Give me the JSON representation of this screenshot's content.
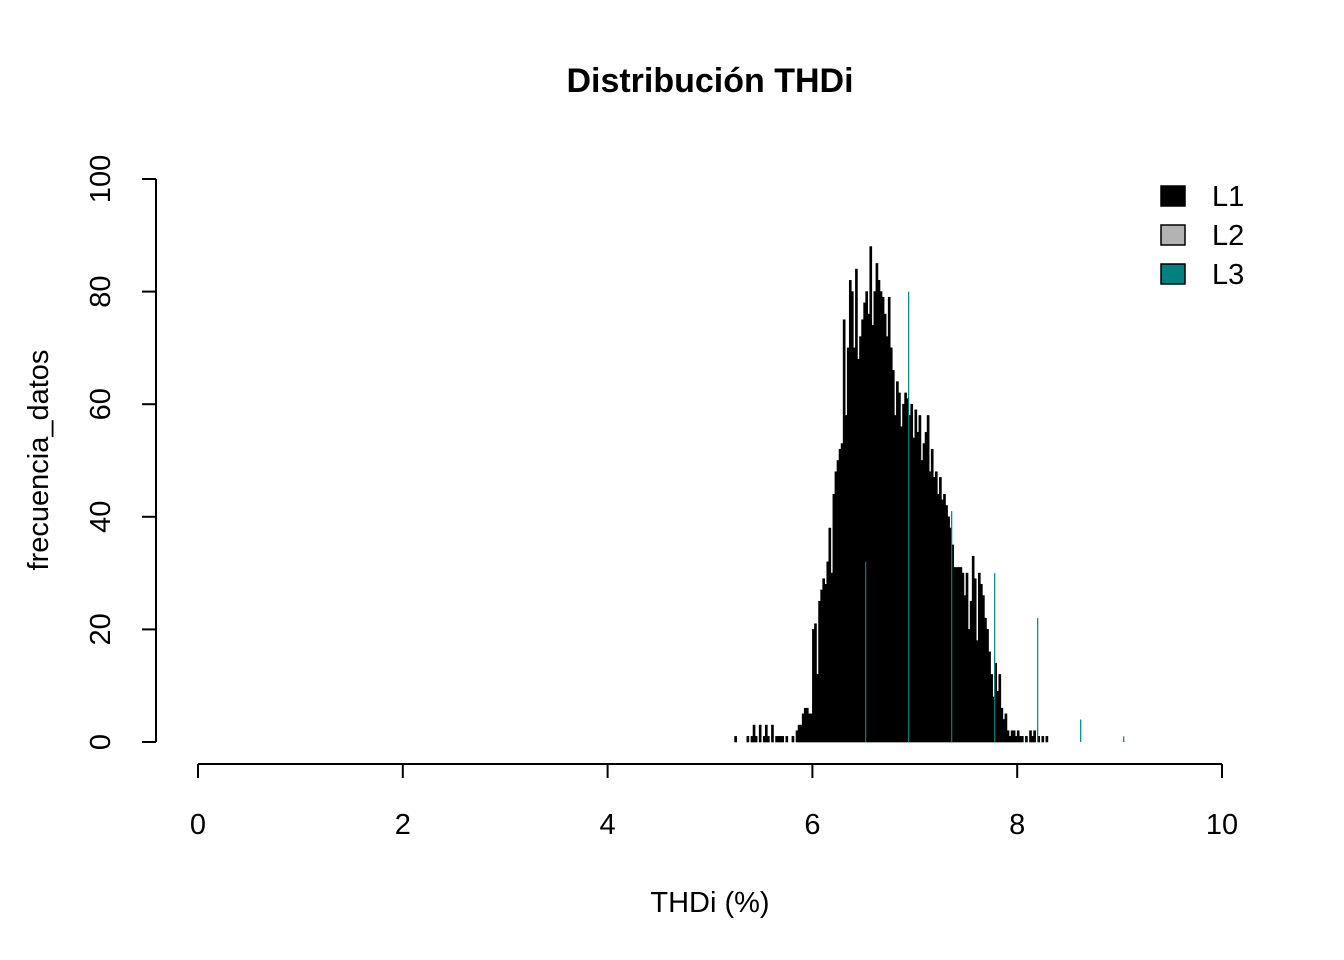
{
  "chart_data": {
    "type": "bar",
    "title": "Distribución THDi",
    "xlabel": "THDi (%)",
    "ylabel": "frecuencia_datos",
    "xlim": [
      0,
      10.35
    ],
    "ylim": [
      0,
      100
    ],
    "x_ticks": [
      "0",
      "2",
      "4",
      "6",
      "8",
      "10"
    ],
    "y_ticks": [
      "0",
      "20",
      "40",
      "60",
      "80",
      "100"
    ],
    "grid": false,
    "legend_position": "top-right",
    "legend": [
      {
        "name": "L1",
        "color": "#000000"
      },
      {
        "name": "L2",
        "color": "#b3b3b3"
      },
      {
        "name": "L3",
        "color": "#008080"
      }
    ],
    "bin_width": 0.02,
    "x_start": 5.24,
    "series": [
      {
        "name": "L1",
        "color": "#000000",
        "values": [
          1,
          0,
          0,
          0,
          0,
          0,
          1,
          0,
          1,
          3,
          1,
          0,
          3,
          0,
          1,
          3,
          1,
          0,
          3,
          0,
          1,
          1,
          1,
          1,
          0,
          1,
          0,
          0,
          1,
          0,
          2,
          3,
          3,
          5,
          6,
          6,
          5,
          5,
          20,
          21,
          12,
          25,
          27,
          29,
          28,
          32,
          38,
          30,
          44,
          48,
          50,
          52,
          53,
          75,
          58,
          70,
          82,
          80,
          70,
          84,
          68,
          72,
          75,
          78,
          80,
          76,
          88,
          74,
          80,
          85,
          82,
          80,
          79,
          76,
          72,
          79,
          70,
          66,
          58,
          64,
          62,
          56,
          60,
          62,
          61,
          58,
          60,
          54,
          59,
          55,
          58,
          50,
          53,
          55,
          58,
          48,
          52,
          47,
          48,
          44,
          47,
          43,
          44,
          42,
          40,
          38,
          35,
          31,
          31,
          31,
          31,
          30,
          26,
          30,
          20,
          25,
          33,
          29,
          18,
          30,
          28,
          26,
          22,
          20,
          16,
          12,
          8,
          14,
          9,
          12,
          6,
          4,
          5,
          2,
          1,
          2,
          2,
          1,
          2,
          1,
          1,
          0,
          1,
          0,
          2,
          1,
          2,
          0,
          1,
          0,
          1,
          0,
          1
        ]
      },
      {
        "name": "L3",
        "color": "#008080",
        "values": [
          0,
          0,
          0,
          0,
          0,
          0,
          0,
          0,
          0,
          0,
          0,
          0,
          0,
          0,
          0,
          0,
          0,
          0,
          0,
          0,
          0,
          0,
          0,
          0,
          0,
          0,
          0,
          0,
          0,
          0,
          0,
          0,
          0,
          0,
          0,
          0,
          0,
          0,
          0,
          0,
          0,
          0,
          0,
          0,
          0,
          0,
          0,
          0,
          0,
          0,
          0,
          0,
          0,
          0,
          0,
          0,
          0,
          0,
          0,
          0,
          0,
          0,
          0,
          0,
          0,
          0,
          0,
          0,
          0,
          0,
          0,
          0,
          0,
          0,
          0,
          0,
          0,
          0,
          0,
          0,
          0,
          0,
          0,
          0,
          0,
          0,
          0,
          0,
          0,
          0,
          0,
          0,
          0,
          0,
          0,
          0,
          0,
          0,
          0,
          0,
          0,
          0,
          0,
          0,
          0,
          0,
          0,
          0,
          0,
          0,
          0,
          0,
          0,
          0,
          0,
          0,
          0,
          0,
          0,
          0,
          0,
          0,
          0,
          0,
          0,
          0,
          0,
          0,
          0,
          0,
          0,
          0,
          0,
          0,
          0,
          0,
          0,
          0,
          0,
          0,
          0,
          0,
          0,
          0,
          0,
          0,
          0,
          0,
          0,
          0,
          0,
          0,
          0
        ],
        "spikes": [
          {
            "x": 6.52,
            "y": 32
          },
          {
            "x": 6.94,
            "y": 80
          },
          {
            "x": 7.36,
            "y": 41
          },
          {
            "x": 7.78,
            "y": 30
          },
          {
            "x": 8.2,
            "y": 22
          },
          {
            "x": 8.62,
            "y": 4
          },
          {
            "x": 9.04,
            "y": 1
          }
        ]
      }
    ]
  }
}
